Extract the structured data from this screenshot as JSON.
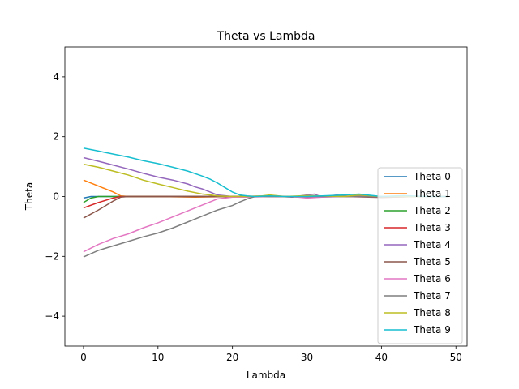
{
  "chart_data": {
    "type": "line",
    "title": "Theta vs Lambda",
    "xlabel": "Lambda",
    "ylabel": "Theta",
    "xlim": [
      -2.5,
      51.5
    ],
    "ylim": [
      -5,
      5
    ],
    "xticks": [
      0,
      10,
      20,
      30,
      40,
      50
    ],
    "yticks": [
      -4,
      -2,
      0,
      2,
      4
    ],
    "legend": "right",
    "grid": false,
    "series": [
      {
        "name": "Theta 0",
        "color": "#1f77b4",
        "points": [
          [
            0,
            -0.05
          ],
          [
            1,
            0.0
          ],
          [
            2,
            0.0
          ],
          [
            5,
            0.0
          ],
          [
            10,
            0.0
          ],
          [
            15,
            0.0
          ],
          [
            20,
            0.0
          ],
          [
            25,
            0.0
          ],
          [
            30,
            0.0
          ],
          [
            35,
            0.0
          ],
          [
            40,
            0.0
          ],
          [
            45,
            0.0
          ],
          [
            49,
            0.0
          ]
        ]
      },
      {
        "name": "Theta 1",
        "color": "#ff7f0e",
        "points": [
          [
            0,
            0.55
          ],
          [
            2,
            0.35
          ],
          [
            4,
            0.15
          ],
          [
            5,
            0.02
          ],
          [
            6,
            0.0
          ],
          [
            10,
            0.0
          ],
          [
            15,
            -0.02
          ],
          [
            20,
            0.0
          ],
          [
            25,
            0.02
          ],
          [
            28,
            0.0
          ],
          [
            30,
            -0.03
          ],
          [
            33,
            0.02
          ],
          [
            36,
            0.0
          ],
          [
            40,
            -0.02
          ],
          [
            45,
            0.0
          ],
          [
            49,
            0.0
          ]
        ]
      },
      {
        "name": "Theta 2",
        "color": "#2ca02c",
        "points": [
          [
            0,
            -0.2
          ],
          [
            1,
            -0.05
          ],
          [
            2,
            0.0
          ],
          [
            5,
            0.0
          ],
          [
            10,
            0.0
          ],
          [
            15,
            0.0
          ],
          [
            20,
            0.0
          ],
          [
            25,
            0.0
          ],
          [
            30,
            0.0
          ],
          [
            35,
            0.0
          ],
          [
            40,
            0.0
          ],
          [
            45,
            0.0
          ],
          [
            49,
            0.0
          ]
        ]
      },
      {
        "name": "Theta 3",
        "color": "#d62728",
        "points": [
          [
            0,
            -0.38
          ],
          [
            2,
            -0.2
          ],
          [
            4,
            -0.05
          ],
          [
            5,
            0.0
          ],
          [
            10,
            0.0
          ],
          [
            15,
            0.0
          ],
          [
            20,
            0.0
          ],
          [
            25,
            0.0
          ],
          [
            30,
            0.0
          ],
          [
            35,
            0.0
          ],
          [
            40,
            0.0
          ],
          [
            45,
            0.0
          ],
          [
            49,
            0.0
          ]
        ]
      },
      {
        "name": "Theta 4",
        "color": "#9467bd",
        "points": [
          [
            0,
            1.3
          ],
          [
            2,
            1.18
          ],
          [
            4,
            1.05
          ],
          [
            6,
            0.92
          ],
          [
            8,
            0.78
          ],
          [
            10,
            0.65
          ],
          [
            12,
            0.55
          ],
          [
            14,
            0.42
          ],
          [
            15,
            0.32
          ],
          [
            16,
            0.25
          ],
          [
            17,
            0.15
          ],
          [
            18,
            0.05
          ],
          [
            20,
            0.0
          ],
          [
            22,
            -0.02
          ],
          [
            25,
            0.02
          ],
          [
            28,
            -0.02
          ],
          [
            30,
            0.05
          ],
          [
            31,
            0.08
          ],
          [
            32,
            -0.02
          ],
          [
            34,
            0.05
          ],
          [
            36,
            0.0
          ],
          [
            38,
            0.03
          ],
          [
            40,
            -0.03
          ],
          [
            45,
            0.0
          ],
          [
            49,
            0.0
          ]
        ]
      },
      {
        "name": "Theta 5",
        "color": "#8c564b",
        "points": [
          [
            0,
            -0.72
          ],
          [
            2,
            -0.45
          ],
          [
            4,
            -0.15
          ],
          [
            5,
            -0.02
          ],
          [
            6,
            0.0
          ],
          [
            10,
            0.0
          ],
          [
            15,
            0.0
          ],
          [
            20,
            0.0
          ],
          [
            25,
            0.0
          ],
          [
            30,
            -0.02
          ],
          [
            35,
            0.0
          ],
          [
            40,
            -0.03
          ],
          [
            45,
            0.0
          ],
          [
            49,
            0.0
          ]
        ]
      },
      {
        "name": "Theta 6",
        "color": "#e377c2",
        "points": [
          [
            0,
            -1.85
          ],
          [
            2,
            -1.6
          ],
          [
            4,
            -1.4
          ],
          [
            6,
            -1.25
          ],
          [
            8,
            -1.05
          ],
          [
            10,
            -0.88
          ],
          [
            12,
            -0.68
          ],
          [
            14,
            -0.48
          ],
          [
            16,
            -0.28
          ],
          [
            18,
            -0.08
          ],
          [
            20,
            -0.02
          ],
          [
            22,
            -0.02
          ],
          [
            25,
            0.0
          ],
          [
            28,
            0.0
          ],
          [
            30,
            -0.05
          ],
          [
            32,
            -0.02
          ],
          [
            35,
            0.0
          ],
          [
            40,
            0.0
          ],
          [
            45,
            0.0
          ],
          [
            49,
            0.0
          ]
        ]
      },
      {
        "name": "Theta 7",
        "color": "#7f7f7f",
        "points": [
          [
            0,
            -2.02
          ],
          [
            2,
            -1.8
          ],
          [
            4,
            -1.65
          ],
          [
            6,
            -1.5
          ],
          [
            8,
            -1.35
          ],
          [
            10,
            -1.22
          ],
          [
            12,
            -1.05
          ],
          [
            14,
            -0.85
          ],
          [
            16,
            -0.65
          ],
          [
            18,
            -0.45
          ],
          [
            20,
            -0.3
          ],
          [
            21,
            -0.18
          ],
          [
            22,
            -0.08
          ],
          [
            23,
            0.0
          ],
          [
            25,
            0.0
          ],
          [
            30,
            0.0
          ],
          [
            35,
            0.0
          ],
          [
            40,
            0.0
          ],
          [
            45,
            0.0
          ],
          [
            49,
            0.0
          ]
        ]
      },
      {
        "name": "Theta 8",
        "color": "#bcbd22",
        "points": [
          [
            0,
            1.08
          ],
          [
            2,
            0.98
          ],
          [
            4,
            0.85
          ],
          [
            6,
            0.72
          ],
          [
            8,
            0.55
          ],
          [
            10,
            0.42
          ],
          [
            12,
            0.3
          ],
          [
            14,
            0.18
          ],
          [
            16,
            0.08
          ],
          [
            18,
            0.02
          ],
          [
            20,
            0.0
          ],
          [
            22,
            0.0
          ],
          [
            24,
            0.02
          ],
          [
            25,
            0.05
          ],
          [
            27,
            0.0
          ],
          [
            30,
            0.03
          ],
          [
            32,
            0.02
          ],
          [
            35,
            0.0
          ],
          [
            37,
            0.05
          ],
          [
            40,
            0.0
          ],
          [
            45,
            0.0
          ],
          [
            49,
            0.0
          ]
        ]
      },
      {
        "name": "Theta 9",
        "color": "#17becf",
        "points": [
          [
            0,
            1.62
          ],
          [
            2,
            1.52
          ],
          [
            4,
            1.42
          ],
          [
            6,
            1.32
          ],
          [
            8,
            1.2
          ],
          [
            10,
            1.1
          ],
          [
            12,
            0.98
          ],
          [
            14,
            0.85
          ],
          [
            16,
            0.68
          ],
          [
            17,
            0.58
          ],
          [
            18,
            0.45
          ],
          [
            19,
            0.3
          ],
          [
            20,
            0.15
          ],
          [
            21,
            0.05
          ],
          [
            22,
            0.02
          ],
          [
            23,
            0.0
          ],
          [
            25,
            0.02
          ],
          [
            27,
            0.0
          ],
          [
            30,
            0.0
          ],
          [
            32,
            0.02
          ],
          [
            35,
            0.05
          ],
          [
            37,
            0.08
          ],
          [
            40,
            0.0
          ],
          [
            43,
            0.03
          ],
          [
            46,
            0.0
          ],
          [
            49,
            0.0
          ]
        ]
      }
    ]
  }
}
